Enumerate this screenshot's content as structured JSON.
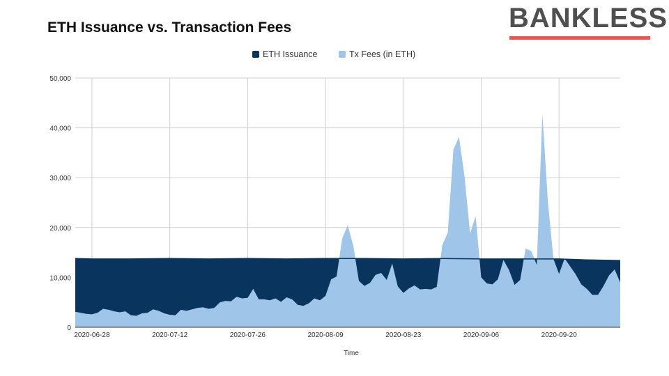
{
  "brand": {
    "name": "BANKLESS",
    "accent": "#ef5350"
  },
  "chart_data": {
    "type": "area",
    "title": "ETH Issuance vs. Transaction Fees",
    "xlabel": "Time",
    "ylabel": "",
    "ylim": [
      0,
      50000
    ],
    "yticks": [
      0,
      10000,
      20000,
      30000,
      40000,
      50000
    ],
    "ytick_labels": [
      "0",
      "10,000",
      "20,000",
      "30,000",
      "40,000",
      "50,000"
    ],
    "xlim": [
      "2020-06-25",
      "2020-10-01"
    ],
    "xticks": [
      "2020-06-28",
      "2020-07-12",
      "2020-07-26",
      "2020-08-09",
      "2020-08-23",
      "2020-09-06",
      "2020-09-20"
    ],
    "grid": true,
    "legend_position": "top",
    "series": [
      {
        "name": "ETH Issuance",
        "color": "#08345e",
        "x": [
          "2020-06-25",
          "2020-06-28",
          "2020-07-05",
          "2020-07-12",
          "2020-07-19",
          "2020-07-26",
          "2020-08-02",
          "2020-08-09",
          "2020-08-16",
          "2020-08-23",
          "2020-08-30",
          "2020-09-06",
          "2020-09-13",
          "2020-09-20",
          "2020-09-25",
          "2020-10-01"
        ],
        "values": [
          13800,
          13700,
          13700,
          13800,
          13700,
          13800,
          13700,
          13800,
          13800,
          13700,
          13800,
          13700,
          13700,
          13700,
          13500,
          13400
        ]
      },
      {
        "name": "Tx Fees (in ETH)",
        "color": "#9fc5e8",
        "x": [
          "2020-06-25",
          "2020-06-26",
          "2020-06-27",
          "2020-06-28",
          "2020-06-29",
          "2020-06-30",
          "2020-07-01",
          "2020-07-02",
          "2020-07-03",
          "2020-07-04",
          "2020-07-05",
          "2020-07-06",
          "2020-07-07",
          "2020-07-08",
          "2020-07-09",
          "2020-07-10",
          "2020-07-11",
          "2020-07-12",
          "2020-07-13",
          "2020-07-14",
          "2020-07-15",
          "2020-07-16",
          "2020-07-17",
          "2020-07-18",
          "2020-07-19",
          "2020-07-20",
          "2020-07-21",
          "2020-07-22",
          "2020-07-23",
          "2020-07-24",
          "2020-07-25",
          "2020-07-26",
          "2020-07-27",
          "2020-07-28",
          "2020-07-29",
          "2020-07-30",
          "2020-07-31",
          "2020-08-01",
          "2020-08-02",
          "2020-08-03",
          "2020-08-04",
          "2020-08-05",
          "2020-08-06",
          "2020-08-07",
          "2020-08-08",
          "2020-08-09",
          "2020-08-10",
          "2020-08-11",
          "2020-08-12",
          "2020-08-13",
          "2020-08-14",
          "2020-08-15",
          "2020-08-16",
          "2020-08-17",
          "2020-08-18",
          "2020-08-19",
          "2020-08-20",
          "2020-08-21",
          "2020-08-22",
          "2020-08-23",
          "2020-08-24",
          "2020-08-25",
          "2020-08-26",
          "2020-08-27",
          "2020-08-28",
          "2020-08-29",
          "2020-08-30",
          "2020-08-31",
          "2020-09-01",
          "2020-09-02",
          "2020-09-03",
          "2020-09-04",
          "2020-09-05",
          "2020-09-06",
          "2020-09-07",
          "2020-09-08",
          "2020-09-09",
          "2020-09-10",
          "2020-09-11",
          "2020-09-12",
          "2020-09-13",
          "2020-09-14",
          "2020-09-15",
          "2020-09-16",
          "2020-09-17",
          "2020-09-18",
          "2020-09-19",
          "2020-09-20",
          "2020-09-21",
          "2020-09-22",
          "2020-09-23",
          "2020-09-24",
          "2020-09-25",
          "2020-09-26",
          "2020-09-27",
          "2020-09-28",
          "2020-09-29",
          "2020-09-30",
          "2020-10-01"
        ],
        "values": [
          3100,
          2900,
          2700,
          2600,
          2900,
          3700,
          3500,
          3200,
          3000,
          3200,
          2400,
          2300,
          2800,
          2900,
          3600,
          3300,
          2800,
          2500,
          2400,
          3500,
          3300,
          3600,
          3900,
          4000,
          3700,
          3900,
          5000,
          5300,
          5200,
          6100,
          5800,
          5900,
          7700,
          5600,
          5600,
          5400,
          5800,
          5100,
          6000,
          5600,
          4500,
          4300,
          4800,
          5800,
          5400,
          6300,
          9600,
          10200,
          17800,
          20500,
          16300,
          9300,
          8300,
          8900,
          10500,
          10900,
          9500,
          12800,
          8200,
          6900,
          7800,
          8400,
          7600,
          7700,
          7600,
          8100,
          16500,
          19000,
          35600,
          38200,
          30200,
          18800,
          22300,
          10000,
          8800,
          8600,
          9600,
          13500,
          11500,
          8500,
          9500,
          15800,
          15300,
          12500,
          42800,
          25000,
          13700,
          10700,
          13800,
          12200,
          10600,
          8600,
          7700,
          6500,
          6500,
          8300,
          10400,
          11600,
          9000
        ]
      }
    ]
  }
}
